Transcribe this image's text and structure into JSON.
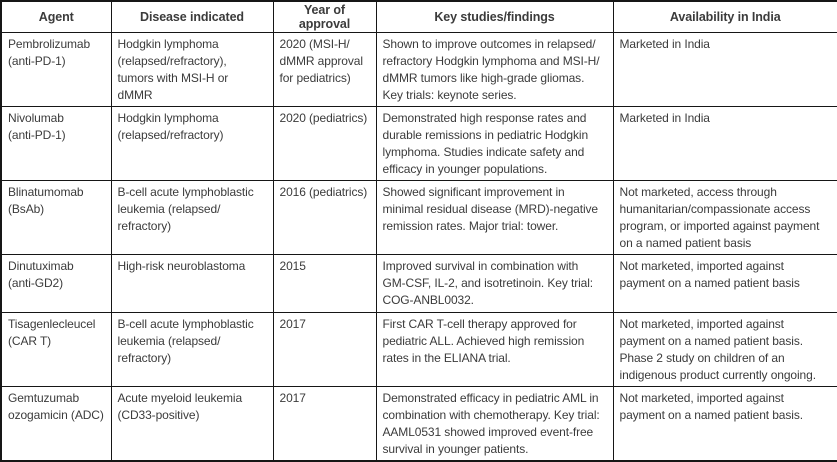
{
  "colors": {
    "text": "#3b3b3b",
    "border": "#161616",
    "background": "#ffffff"
  },
  "table": {
    "headers": [
      "Agent",
      "Disease indicated",
      "Year of approval",
      "Key studies/findings",
      "Availability in India"
    ],
    "rows": [
      {
        "agent": "Pembrolizumab\n(anti-PD-1)",
        "disease": "Hodgkin lymphoma\n(relapsed/refractory),\ntumors with MSI-H or\ndMMR",
        "year": "2020 (MSI-H/\ndMMR approval\nfor pediatrics)",
        "findings": "Shown to improve outcomes in relapsed/\nrefractory Hodgkin lymphoma and MSI-H/\ndMMR tumors like high-grade gliomas.\nKey trials: keynote series.",
        "availability": "Marketed in India"
      },
      {
        "agent": "Nivolumab\n(anti-PD-1)",
        "disease": "Hodgkin lymphoma\n(relapsed/refractory)",
        "year": "2020 (pediatrics)",
        "findings": "Demonstrated high response rates and\ndurable remissions in pediatric Hodgkin\nlymphoma. Studies indicate safety and\nefficacy in younger populations.",
        "availability": "Marketed in India"
      },
      {
        "agent": "Blinatumomab\n(BsAb)",
        "disease": "B-cell acute lymphoblastic\nleukemia (relapsed/\nrefractory)",
        "year": "2016 (pediatrics)",
        "findings": "Showed significant improvement in\nminimal residual disease (MRD)-negative\nremission rates. Major trial: tower.",
        "availability": "Not marketed, access through\nhumanitarian/compassionate access\nprogram, or imported against payment\non a named patient basis"
      },
      {
        "agent": "Dinutuximab\n(anti-GD2)",
        "disease": "High-risk neuroblastoma",
        "year": "2015",
        "findings": "Improved survival in combination with\nGM-CSF, IL-2, and isotretinoin. Key trial:\nCOG-ANBL0032.",
        "availability": "Not marketed, imported against\npayment on a named patient basis"
      },
      {
        "agent": "Tisagenlecleucel\n(CAR T)",
        "disease": "B-cell acute lymphoblastic\nleukemia (relapsed/\nrefractory)",
        "year": "2017",
        "findings": "First CAR T-cell therapy approved for\npediatric ALL. Achieved high remission\nrates in the ELIANA trial.",
        "availability": "Not marketed, imported against\npayment on a named patient basis.\nPhase 2 study on children of an\nindigenous product currently ongoing."
      },
      {
        "agent": "Gemtuzumab\nozogamicin (ADC)",
        "disease": "Acute myeloid leukemia\n(CD33-positive)",
        "year": "2017",
        "findings": "Demonstrated efficacy in pediatric AML in\ncombination with chemotherapy. Key trial:\nAAML0531 showed improved event-free\nsurvival in younger patients.",
        "availability": "Not marketed, imported against\npayment on a named patient basis."
      }
    ]
  }
}
